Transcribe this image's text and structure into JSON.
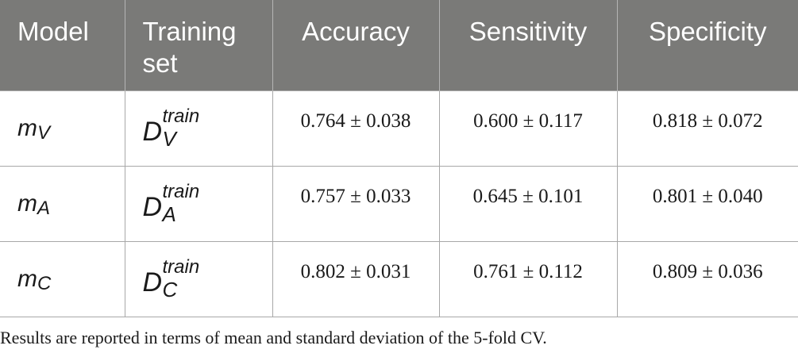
{
  "table": {
    "headers": [
      "Model",
      "Training set",
      "Accuracy",
      "Sensitivity",
      "Specificity"
    ],
    "rows": [
      {
        "model_base": "m",
        "model_sub": "V",
        "train_base": "D",
        "train_sup": "train",
        "train_sub": "V",
        "accuracy": "0.764 ± 0.038",
        "sensitivity": "0.600 ± 0.117",
        "specificity": "0.818 ± 0.072"
      },
      {
        "model_base": "m",
        "model_sub": "A",
        "train_base": "D",
        "train_sup": "train",
        "train_sub": "A",
        "accuracy": "0.757 ± 0.033",
        "sensitivity": "0.645 ± 0.101",
        "specificity": "0.801 ± 0.040"
      },
      {
        "model_base": "m",
        "model_sub": "C",
        "train_base": "D",
        "train_sup": "train",
        "train_sub": "C",
        "accuracy": "0.802 ± 0.031",
        "sensitivity": "0.761 ± 0.112",
        "specificity": "0.809 ± 0.036"
      }
    ]
  },
  "footnote": "Results are reported in terms of mean and standard deviation of the 5-fold CV.",
  "colors": {
    "header_background": "#7a7a78",
    "header_text": "#ffffff",
    "grid_lines": "#a8a8a8"
  }
}
